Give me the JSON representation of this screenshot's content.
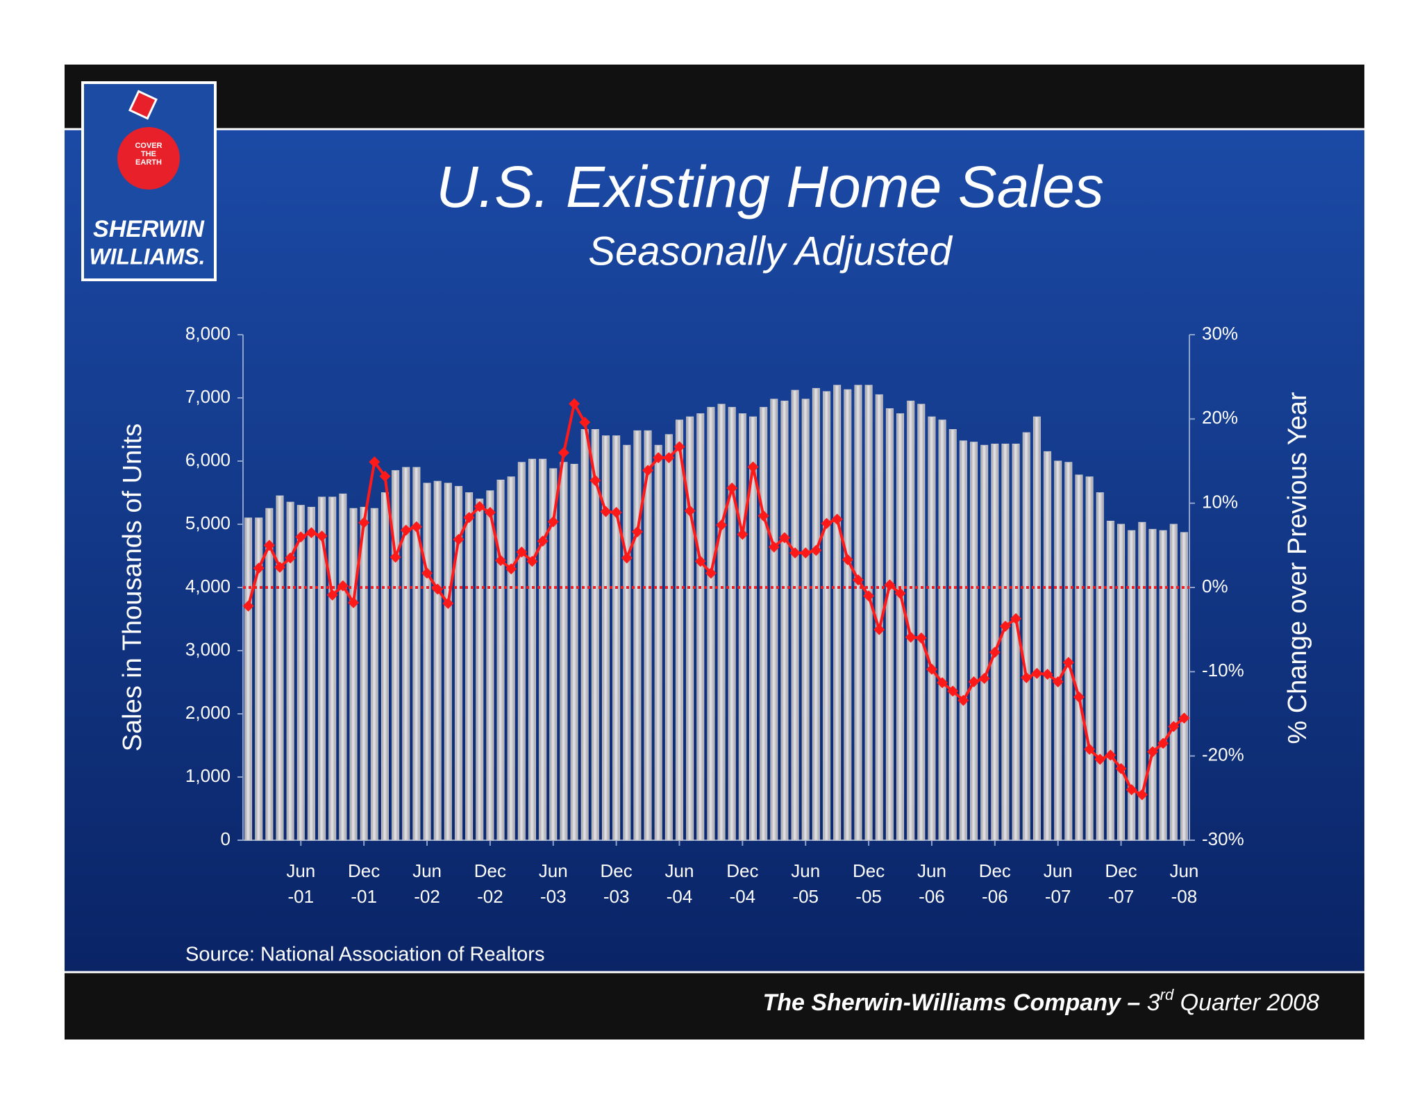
{
  "logo": {
    "badge": [
      "COVER",
      "THE",
      "EARTH"
    ],
    "name": [
      "SHERWIN",
      "WILLIAMS."
    ]
  },
  "chart_data": {
    "type": "bar",
    "title": "U.S. Existing Home Sales",
    "subtitle": "Seasonally Adjusted",
    "y_label": "Sales in Thousands of Units",
    "y2_label": "% Change over Previous Year",
    "source": "Source: National Association of Realtors",
    "categories": [
      null,
      null,
      null,
      null,
      null,
      "Jun -01",
      null,
      null,
      null,
      null,
      null,
      "Dec -01",
      null,
      null,
      null,
      null,
      null,
      "Jun -02",
      null,
      null,
      null,
      null,
      null,
      "Dec -02",
      null,
      null,
      null,
      null,
      null,
      "Jun -03",
      null,
      null,
      null,
      null,
      null,
      "Dec -03",
      null,
      null,
      null,
      null,
      null,
      "Jun -04",
      null,
      null,
      null,
      null,
      null,
      "Dec -04",
      null,
      null,
      null,
      null,
      null,
      "Jun -05",
      null,
      null,
      null,
      null,
      null,
      "Dec -05",
      null,
      null,
      null,
      null,
      null,
      "Jun -06",
      null,
      null,
      null,
      null,
      null,
      "Dec -06",
      null,
      null,
      null,
      null,
      null,
      "Jun -07",
      null,
      null,
      null,
      null,
      null,
      "Dec -07",
      null,
      null,
      null,
      null,
      null,
      "Jun -08"
    ],
    "series": [
      {
        "type": "bar",
        "color": "#c8c8cc",
        "values": [
          5100,
          5100,
          5250,
          5450,
          5350,
          5300,
          5270,
          5430,
          5430,
          5480,
          5250,
          5270,
          5250,
          5500,
          5850,
          5900,
          5900,
          5650,
          5680,
          5650,
          5600,
          5500,
          5400,
          5530,
          5700,
          5750,
          5980,
          6030,
          6030,
          5880,
          5980,
          5950,
          6500,
          6500,
          6400,
          6400,
          6250,
          6480,
          6480,
          6250,
          6420,
          6650,
          6700,
          6750,
          6850,
          6900,
          6850,
          6750,
          6700,
          6850,
          6980,
          6950,
          7120,
          6980,
          7150,
          7100,
          7200,
          7130,
          7200,
          7200,
          7050,
          6830,
          6750,
          6950,
          6900,
          6700,
          6650,
          6500,
          6320,
          6300,
          6250,
          6270,
          6270,
          6270,
          6450,
          6700,
          6150,
          6000,
          5980,
          5780,
          5750,
          5500,
          5050,
          5000,
          4900,
          5030,
          4920,
          4900,
          5000,
          4870
        ]
      },
      {
        "type": "line",
        "axis": "y2",
        "color": "#ff1a1a",
        "values": [
          -2.2,
          2.3,
          5,
          2.4,
          3.5,
          6,
          6.5,
          6.1,
          -0.9,
          0.2,
          -1.8,
          7.7,
          14.9,
          13.2,
          3.6,
          6.8,
          7.2,
          1.7,
          -0.2,
          -1.9,
          5.7,
          8.3,
          9.6,
          8.9,
          3.2,
          2.2,
          4.2,
          3.1,
          5.5,
          7.8,
          16,
          21.8,
          19.6,
          12.7,
          9,
          8.9,
          3.5,
          6.6,
          13.9,
          15.4,
          15.4,
          16.7,
          9.1,
          3.1,
          1.7,
          7.4,
          11.8,
          6.3,
          14.3,
          8.5,
          4.8,
          5.9,
          4.1,
          4.1,
          4.4,
          7.6,
          8.1,
          3.3,
          0.9,
          -1,
          -5,
          0.3,
          -0.7,
          -5.9,
          -6,
          -9.7,
          -11.3,
          -12.3,
          -13.4,
          -11.2,
          -10.8,
          -7.7,
          -4.6,
          -3.7,
          -10.7,
          -10.2,
          -10.3,
          -11.2,
          -8.9,
          -13,
          -19.2,
          -20.4,
          -19.9,
          -21.5,
          -24,
          -24.6,
          -19.5,
          -18.5,
          -16.5,
          -15.5
        ]
      }
    ],
    "ylim": [
      0,
      8000
    ],
    "yticks": [
      0,
      {
        "value": 1000,
        "label": "1,000"
      },
      {
        "value": 2000,
        "label": "2,000"
      },
      {
        "value": 3000,
        "label": "3,000"
      },
      {
        "value": 4000,
        "label": "4,000"
      },
      {
        "value": 5000,
        "label": "5,000"
      },
      {
        "value": 6000,
        "label": "6,000"
      },
      {
        "value": 7000,
        "label": "7,000"
      },
      {
        "value": 8000,
        "label": "8,000"
      }
    ],
    "y2lim": [
      -30,
      30
    ],
    "y2ticks": [
      {
        "value": -30,
        "label": "-30%"
      },
      {
        "value": -20,
        "label": "-20%"
      },
      {
        "value": -10,
        "label": "-10%"
      },
      {
        "value": 0,
        "label": "0%"
      },
      {
        "value": 10,
        "label": "10%"
      },
      {
        "value": 20,
        "label": "20%"
      },
      {
        "value": 30,
        "label": "30%"
      }
    ]
  },
  "footer": {
    "company": "The Sherwin-Williams Company –",
    "number": "3",
    "suffix": "rd",
    "rest": "Quarter 2008"
  }
}
